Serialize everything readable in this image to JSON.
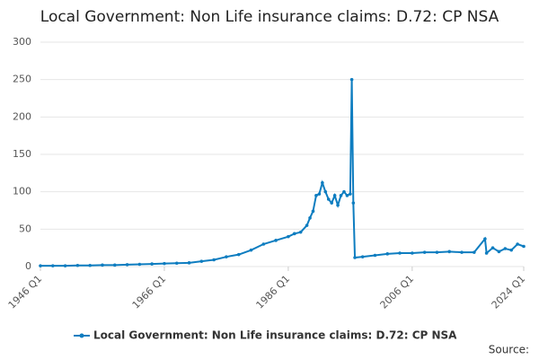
{
  "chart_data": {
    "type": "line",
    "title": "Local Government: Non Life insurance claims: D.72: CP NSA",
    "x": [
      1946,
      1948,
      1950,
      1952,
      1954,
      1956,
      1958,
      1960,
      1962,
      1964,
      1966,
      1968,
      1970,
      1972,
      1974,
      1976,
      1978,
      1980,
      1982,
      1984,
      1986,
      1987,
      1988,
      1989,
      1989.5,
      1990,
      1990.5,
      1991,
      1991.5,
      1992,
      1992.5,
      1993,
      1993.5,
      1994,
      1994.5,
      1995,
      1995.5,
      1996,
      1996.25,
      1996.5,
      1996.75,
      1998,
      2000,
      2002,
      2004,
      2006,
      2008,
      2010,
      2012,
      2014,
      2016,
      2017.75,
      2018,
      2019,
      2020,
      2021,
      2022,
      2023,
      2024
    ],
    "series": [
      {
        "name": "Local Government: Non Life insurance claims: D.72: CP NSA",
        "color": "#0e7dc0",
        "values": [
          1,
          1,
          1,
          1.5,
          1.5,
          2,
          2,
          2.5,
          3,
          3.5,
          4,
          4.5,
          5,
          7,
          9,
          13,
          16,
          22,
          30,
          35,
          40,
          44,
          46,
          55,
          65,
          74,
          95,
          97,
          112,
          100,
          90,
          85,
          95,
          82,
          95,
          100,
          95,
          97,
          250,
          85,
          12,
          13,
          15,
          17,
          18,
          18,
          19,
          19,
          20,
          19,
          19,
          37,
          18,
          25,
          20,
          24,
          22,
          30,
          27
        ]
      }
    ],
    "xlim": [
      1946,
      2024
    ],
    "xticks": [
      {
        "value": 1946,
        "label": "1946 Q1"
      },
      {
        "value": 1966,
        "label": "1966 Q1"
      },
      {
        "value": 1986,
        "label": "1986 Q1"
      },
      {
        "value": 2006,
        "label": "2006 Q1"
      },
      {
        "value": 2024,
        "label": "2024 Q1"
      }
    ],
    "ylim": [
      0,
      300
    ],
    "yticks": [
      0,
      50,
      100,
      150,
      200,
      250,
      300
    ],
    "grid": true,
    "source": "Source:"
  }
}
